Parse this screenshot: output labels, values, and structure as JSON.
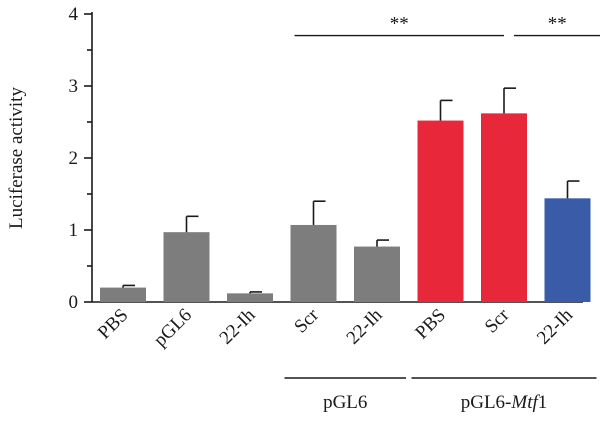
{
  "chart_data": {
    "type": "bar",
    "ylabel": "Luciferase activity",
    "xlabel": "",
    "ylim": [
      0,
      4
    ],
    "yticks": [
      "0",
      "1",
      "2",
      "3",
      "4"
    ],
    "categories": [
      "PBS",
      "pGL6",
      "22-Ih",
      "Scr",
      "22-Ih",
      "PBS",
      "Scr",
      "22-Ih"
    ],
    "values": [
      0.2,
      0.97,
      0.12,
      1.07,
      0.77,
      2.52,
      2.62,
      1.44
    ],
    "errors": [
      0.03,
      0.22,
      0.02,
      0.33,
      0.09,
      0.28,
      0.35,
      0.24
    ],
    "colors": [
      "#7d7d7d",
      "#7d7d7d",
      "#7d7d7d",
      "#7d7d7d",
      "#7d7d7d",
      "#e8283a",
      "#e8283a",
      "#3a5ba8"
    ],
    "groups": [
      {
        "label": "pGL6",
        "from": 3,
        "to": 4
      },
      {
        "label_prefix": "pGL6-",
        "label_italic": "Mtf",
        "label_suffix": "1",
        "from": 5,
        "to": 7
      }
    ],
    "significance": [
      {
        "from": 3,
        "to": 6,
        "label": "**",
        "y": 3.7
      },
      {
        "from": 6,
        "to": 7,
        "label": "**",
        "y": 3.7
      }
    ],
    "grid": false,
    "legend": "none"
  }
}
